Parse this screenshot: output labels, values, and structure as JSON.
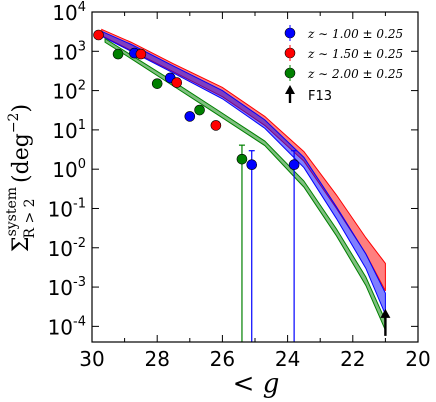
{
  "chart_data": {
    "type": "scatter",
    "xlabel": "< g",
    "ylabel": "Σ",
    "ylabel_sub": "R > 2",
    "ylabel_sup": "system",
    "ylabel_unit": "(deg",
    "ylabel_unit_sup": "−2",
    "ylabel_unit_close": ")",
    "xlim": [
      30,
      20
    ],
    "ylim": [
      4e-05,
      10000
    ],
    "yscale": "log",
    "grid": false,
    "legend_placement": "top-right",
    "x_ticks": [
      30,
      28,
      26,
      24,
      22,
      20
    ],
    "x_tick_labels": [
      "30",
      "28",
      "26",
      "24",
      "22",
      "20"
    ],
    "y_ticks": [
      {
        "value": 10000,
        "base": "10",
        "exp": "4"
      },
      {
        "value": 1000,
        "base": "10",
        "exp": "3"
      },
      {
        "value": 100,
        "base": "10",
        "exp": "2"
      },
      {
        "value": 10,
        "base": "10",
        "exp": "1"
      },
      {
        "value": 1,
        "base": "10",
        "exp": "0"
      },
      {
        "value": 0.1,
        "base": "10",
        "exp": "-1"
      },
      {
        "value": 0.01,
        "base": "10",
        "exp": "-2"
      },
      {
        "value": 0.001,
        "base": "10",
        "exp": "-3"
      },
      {
        "value": 0.0001,
        "base": "10",
        "exp": "-4"
      }
    ],
    "series": [
      {
        "name": "z ∼ 1.00 ± 0.25",
        "color": "#0000ff",
        "x": [
          28.7,
          27.6,
          27.0,
          25.1,
          23.8
        ],
        "y": [
          900,
          210,
          22,
          1.3,
          1.3
        ],
        "yerr_low_to": [
          null,
          null,
          null,
          3e-05,
          3e-05
        ],
        "band_x": [
          29.7,
          28.8,
          27.5,
          26.0,
          24.7,
          23.5,
          22.5,
          21.6,
          21.0
        ],
        "band_lo": [
          2400,
          1000,
          280,
          62,
          11,
          1.1,
          0.055,
          0.003,
          0.0002
        ],
        "band_hi": [
          3200,
          1500,
          420,
          100,
          18,
          2.0,
          0.11,
          0.007,
          0.0007
        ]
      },
      {
        "name": "z ∼ 1.50 ± 0.25",
        "color": "#ff0000",
        "x": [
          29.8,
          28.5,
          27.4,
          26.2
        ],
        "y": [
          2600,
          850,
          160,
          13
        ],
        "yerr_low_to": [
          null,
          null,
          null,
          null
        ],
        "band_x": [
          29.7,
          28.8,
          27.5,
          26.0,
          24.7,
          23.5,
          22.5,
          21.6,
          21.0
        ],
        "band_lo": [
          2500,
          1050,
          300,
          70,
          13,
          1.6,
          0.1,
          0.007,
          0.0008
        ],
        "band_hi": [
          3600,
          1700,
          480,
          120,
          22,
          2.8,
          0.22,
          0.018,
          0.004
        ]
      },
      {
        "name": "z ∼ 2.00 ± 0.25",
        "color": "#008000",
        "x": [
          29.2,
          28.0,
          26.7,
          25.4
        ],
        "y": [
          850,
          150,
          32,
          1.8
        ],
        "yerr_low_to": [
          null,
          null,
          null,
          3e-05
        ],
        "band_x": [
          29.6,
          28.8,
          27.5,
          26.2,
          24.7,
          23.5,
          22.5,
          21.6,
          21.0
        ],
        "band_lo": [
          1700,
          650,
          130,
          26,
          4,
          0.35,
          0.02,
          0.0011,
          8e-05
        ],
        "band_hi": [
          2100,
          800,
          170,
          34,
          5.2,
          0.5,
          0.03,
          0.0018,
          0.00014
        ]
      }
    ],
    "f13": {
      "name": "F13",
      "x": 21.0,
      "y": 0.00013
    }
  }
}
